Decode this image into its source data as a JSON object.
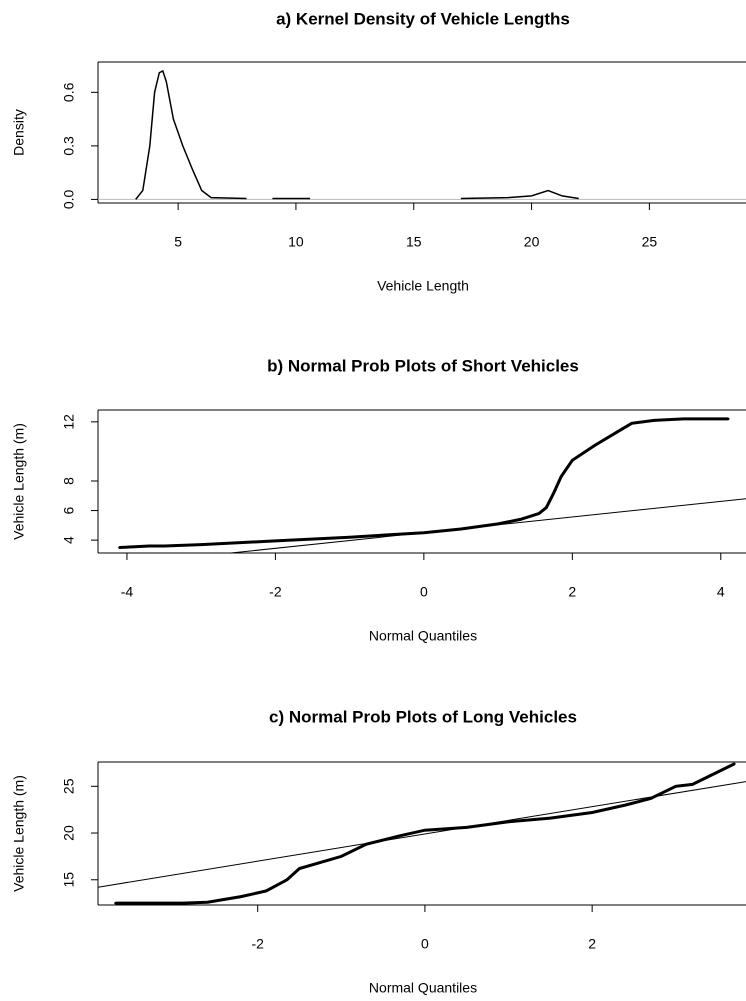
{
  "chart_data": [
    {
      "type": "line",
      "title": "a) Kernel Density of Vehicle Lengths",
      "x_label": "Vehicle Length",
      "y_label": "Density",
      "x": [
        3.2,
        3.5,
        3.8,
        4.0,
        4.2,
        4.35,
        4.5,
        4.8,
        5.2,
        5.6,
        6.0,
        6.4,
        7.9,
        null,
        9.0,
        10.6,
        null,
        17.0,
        19.0,
        20.0,
        20.7,
        21.3,
        22.0
      ],
      "values": [
        0,
        0.05,
        0.3,
        0.6,
        0.71,
        0.72,
        0.66,
        0.45,
        0.3,
        0.17,
        0.05,
        0.01,
        0.005,
        null,
        0.005,
        0.005,
        null,
        0.005,
        0.01,
        0.02,
        0.05,
        0.02,
        0.005
      ],
      "color": "#000000",
      "baseline_color": "#bbbbbb",
      "xlim": [
        1.6,
        29.1
      ],
      "ylim": [
        -0.02,
        0.77
      ],
      "xticks": [
        5,
        10,
        15,
        20,
        25
      ],
      "yticks": [
        {
          "value": 0,
          "label": "0.0"
        },
        0.3,
        0.6
      ]
    },
    {
      "type": "qq",
      "title": "b) Normal Prob Plots of Short Vehicles",
      "x_label": "Normal Quantiles",
      "y_label": "Vehicle Length (m)",
      "x": [
        -4.1,
        -3.9,
        -3.7,
        -3.5,
        -3.0,
        -2.0,
        -1.0,
        0,
        0.5,
        1.0,
        1.3,
        1.55,
        1.65,
        1.75,
        1.85,
        2.0,
        2.3,
        2.6,
        2.8,
        3.1,
        3.5,
        3.8,
        4.1
      ],
      "values": [
        3.5,
        3.55,
        3.6,
        3.6,
        3.7,
        3.95,
        4.2,
        4.5,
        4.75,
        5.1,
        5.4,
        5.8,
        6.2,
        7.2,
        8.3,
        9.4,
        10.4,
        11.3,
        11.9,
        12.1,
        12.2,
        12.2,
        12.2
      ],
      "ref_line": {
        "x": [
          -2.6,
          4.34
        ],
        "values": [
          3.13,
          6.8
        ]
      },
      "color": "#000000",
      "xlim": [
        -4.39,
        4.34
      ],
      "ylim": [
        3.13,
        12.8
      ],
      "xticks": [
        -4,
        -2,
        0,
        2,
        4
      ],
      "yticks": [
        4,
        6,
        8,
        12
      ]
    },
    {
      "type": "qq",
      "title": "c) Normal Prob Plots of Long Vehicles",
      "x_label": "Normal Quantiles",
      "y_label": "Vehicle Length (m)",
      "x": [
        -3.7,
        -3.3,
        -2.9,
        -2.6,
        -2.2,
        -1.9,
        -1.65,
        -1.5,
        -1.0,
        -0.7,
        -0.3,
        0,
        0.5,
        1.0,
        1.5,
        2.0,
        2.4,
        2.7,
        3.0,
        3.2,
        3.7
      ],
      "values": [
        12.5,
        12.5,
        12.5,
        12.6,
        13.2,
        13.8,
        15.0,
        16.2,
        17.5,
        18.8,
        19.7,
        20.3,
        20.6,
        21.2,
        21.6,
        22.2,
        23.0,
        23.7,
        25.0,
        25.2,
        27.4
      ],
      "ref_line": {
        "x": [
          -3.91,
          3.84
        ],
        "values": [
          14.2,
          25.5
        ]
      },
      "color": "#000000",
      "xlim": [
        -3.91,
        3.84
      ],
      "ylim": [
        12.3,
        27.6
      ],
      "xticks": [
        -2,
        0,
        2
      ],
      "yticks": [
        15,
        20,
        25
      ]
    }
  ]
}
